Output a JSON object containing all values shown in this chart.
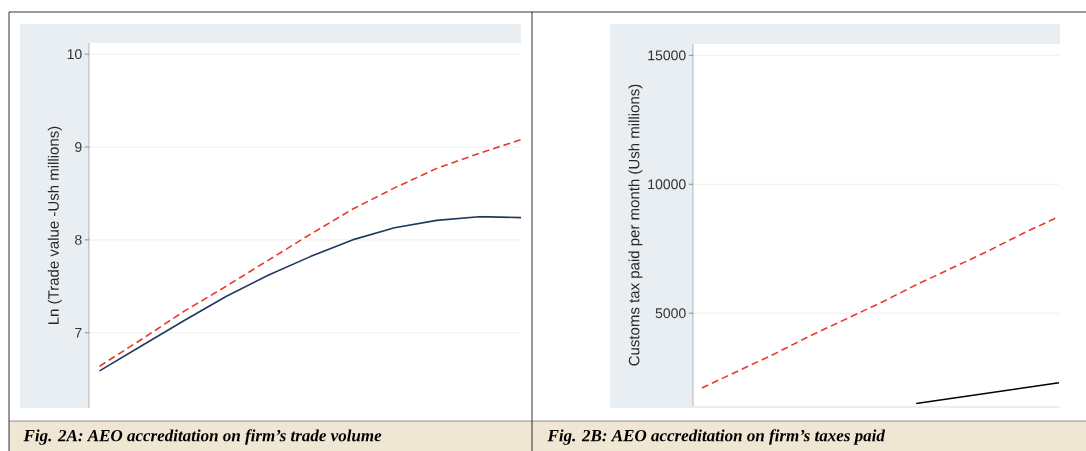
{
  "chart_data": [
    {
      "type": "line",
      "title": "Fig. 2A: AEO accreditation on firm’s trade volume",
      "ylabel": "Ln (Trade value -Ush millions)",
      "categories": [
        null,
        null,
        null,
        null,
        null,
        null,
        null,
        null,
        null,
        null,
        null
      ],
      "ylim": [
        6.19,
        10.12
      ],
      "yticks": [
        7,
        8,
        9,
        10
      ],
      "grid": "y",
      "tick_labels": "y",
      "series": [
        {
          "color": "#e8392b",
          "line_style": "dashed",
          "values": [
            6.64,
            6.93,
            7.23,
            7.5,
            7.78,
            8.06,
            8.33,
            8.56,
            8.77,
            8.93,
            9.08
          ]
        },
        {
          "color": "#1f3a5f",
          "line_style": "solid",
          "values": [
            6.59,
            6.86,
            7.13,
            7.39,
            7.62,
            7.82,
            8.0,
            8.13,
            8.21,
            8.25,
            8.24
          ]
        }
      ]
    },
    {
      "type": "line",
      "title": "Fig. 2B: AEO accreditation on firm’s taxes paid",
      "ylabel": "Customs tax paid per month (Ush millions)",
      "categories": [
        null,
        null,
        null,
        null,
        null,
        null,
        null,
        null,
        null,
        null,
        null
      ],
      "ylim": [
        1400,
        15440
      ],
      "yticks": [
        5000,
        10000,
        15000
      ],
      "grid": "y",
      "tick_labels": "y",
      "series": [
        {
          "color": "#e8392b",
          "line_style": "dashed",
          "values": [
            2100,
            2750,
            3400,
            4100,
            4750,
            5400,
            6100,
            6750,
            7400,
            8100,
            8750
          ]
        },
        {
          "color": "#000000",
          "line_style": "solid",
          "values": [
            null,
            null,
            null,
            null,
            null,
            null,
            1500,
            1700,
            1900,
            2100,
            2300
          ]
        }
      ]
    }
  ]
}
